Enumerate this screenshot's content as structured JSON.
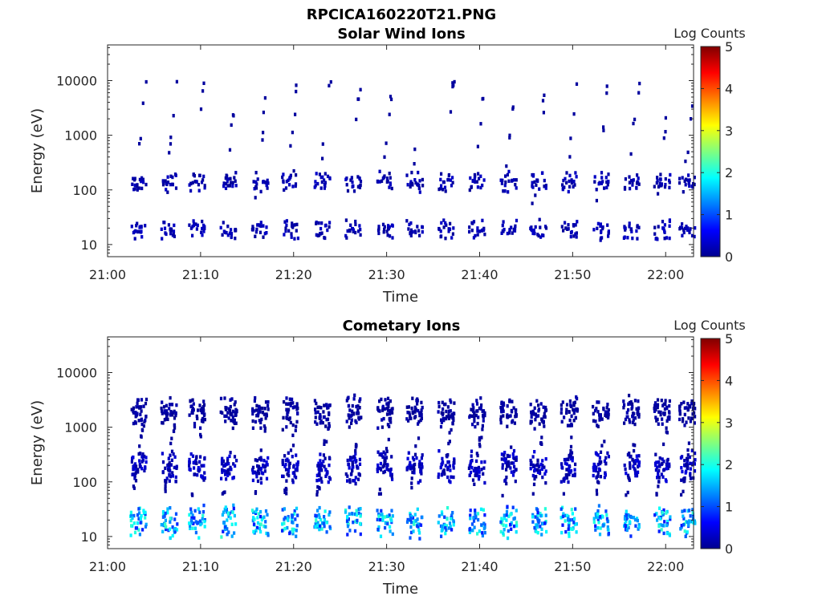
{
  "figure_title": "RPCICA160220T21.PNG",
  "colorbar_label": "Log Counts",
  "chart_data": [
    {
      "type": "heatmap",
      "title": "Solar Wind Ions",
      "xlabel": "Time",
      "ylabel": "Energy (eV)",
      "y_scale": "log",
      "ylim": [
        6,
        45000
      ],
      "xlim": [
        "21:00",
        "22:03"
      ],
      "xticks": [
        "21:00",
        "21:10",
        "21:20",
        "21:30",
        "21:40",
        "21:50",
        "22:00"
      ],
      "yticks": [
        "10",
        "100",
        "1000",
        "10000"
      ],
      "color_scale": {
        "min": 0,
        "max": 5,
        "ticks": [
          "0",
          "1",
          "2",
          "3",
          "4",
          "5"
        ],
        "label": "Log Counts"
      },
      "cycle_start_minutes": [
        2.5,
        5.8,
        8.8,
        12.2,
        15.6,
        18.8,
        22.3,
        25.6,
        29.0,
        32.2,
        35.6,
        38.9,
        42.3,
        45.5,
        48.8,
        52.2,
        55.5,
        58.8,
        61.5
      ],
      "populations": [
        {
          "energy_eV": 150,
          "log_counts": 0.3
        },
        {
          "energy_eV": 20,
          "log_counts": 0.3
        }
      ]
    },
    {
      "type": "heatmap",
      "title": "Cometary Ions",
      "xlabel": "Time",
      "ylabel": "Energy (eV)",
      "y_scale": "log",
      "ylim": [
        6,
        45000
      ],
      "xlim": [
        "21:00",
        "22:03"
      ],
      "xticks": [
        "21:00",
        "21:10",
        "21:20",
        "21:30",
        "21:40",
        "21:50",
        "22:00"
      ],
      "yticks": [
        "10",
        "100",
        "1000",
        "10000"
      ],
      "color_scale": {
        "min": 0,
        "max": 5,
        "ticks": [
          "0",
          "1",
          "2",
          "3",
          "4",
          "5"
        ],
        "label": "Log Counts"
      },
      "cycle_start_minutes": [
        2.5,
        5.8,
        8.8,
        12.2,
        15.6,
        18.8,
        22.3,
        25.6,
        29.0,
        32.2,
        35.6,
        38.9,
        42.3,
        45.5,
        48.8,
        52.2,
        55.5,
        58.8,
        61.5
      ],
      "populations": [
        {
          "energy_eV": 20,
          "log_counts": 1.8
        },
        {
          "energy_eV": 200,
          "log_counts": 0.4
        },
        {
          "energy_eV": 2000,
          "log_counts": 0.2
        }
      ]
    }
  ]
}
